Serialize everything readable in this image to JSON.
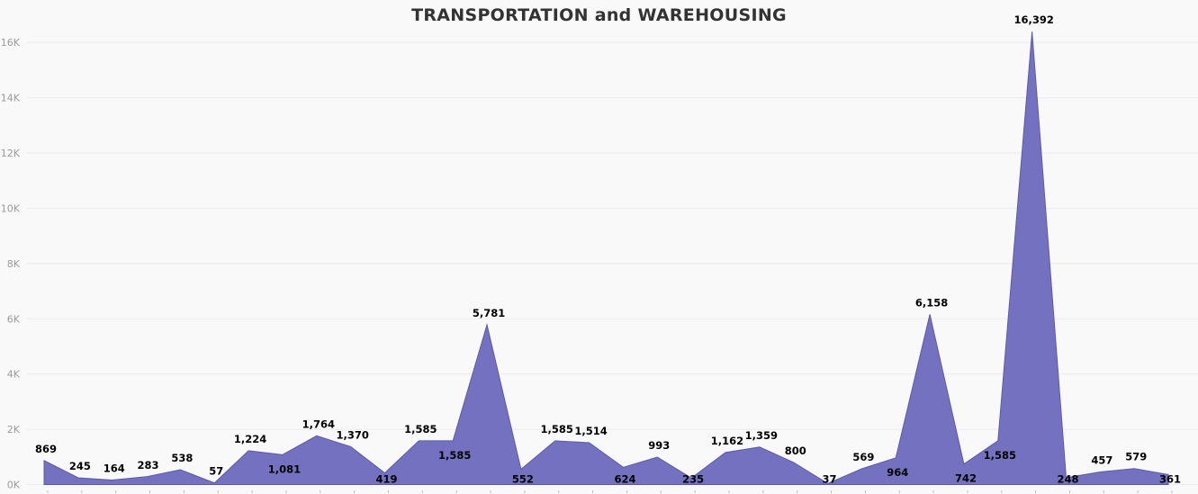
{
  "chart_data": {
    "type": "area",
    "title": "TRANSPORTATION and WAREHOUSING",
    "xlabel": "",
    "ylabel": "",
    "ylim": [
      0,
      17000
    ],
    "y_ticks": [
      0,
      2000,
      4000,
      6000,
      8000,
      10000,
      12000,
      14000,
      16000
    ],
    "y_tick_labels": [
      "0K",
      "2K",
      "4K",
      "6K",
      "8K",
      "10K",
      "12K",
      "14K",
      "16K"
    ],
    "grid": true,
    "values": [
      869,
      245,
      164,
      283,
      538,
      57,
      1224,
      1081,
      1764,
      1370,
      419,
      1585,
      1585,
      5781,
      552,
      1585,
      1514,
      624,
      993,
      235,
      1162,
      1359,
      800,
      37,
      569,
      964,
      6158,
      742,
      1585,
      16392,
      248,
      457,
      579,
      361
    ],
    "data_labels": [
      "869",
      "245",
      "164",
      "283",
      "538",
      "57",
      "1,224",
      "1,081",
      "1,764",
      "1,370",
      "419",
      "1,585",
      "1,585",
      "5,781",
      "552",
      "1,585",
      "1,514",
      "624",
      "993",
      "235",
      "1,162",
      "1,359",
      "800",
      "37",
      "569",
      "964",
      "6,158",
      "742",
      "1,585",
      "16,392",
      "248",
      "457",
      "579",
      "361"
    ],
    "label_position": [
      "above",
      "above",
      "above",
      "above",
      "above",
      "above",
      "above",
      "below",
      "above",
      "above",
      "below",
      "above",
      "below",
      "above",
      "below",
      "above",
      "above",
      "below",
      "above",
      "below",
      "above",
      "above",
      "above",
      "below",
      "above",
      "below",
      "above",
      "below",
      "below",
      "above",
      "below",
      "above",
      "above",
      "below"
    ],
    "colors": {
      "fill": "#7472c0",
      "stroke": "#5b59ad",
      "grid": "#ececec",
      "tick_mark": "#bbbbbb"
    }
  }
}
